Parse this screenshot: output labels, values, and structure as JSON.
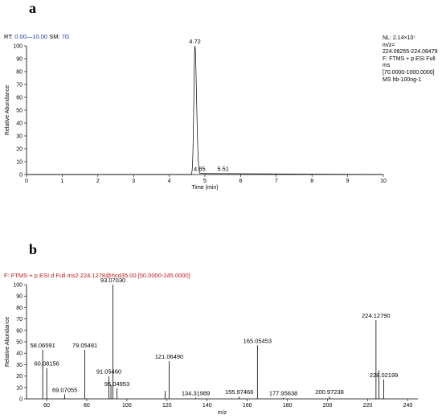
{
  "charts": [
    {
      "type": "line",
      "panel_label": "a",
      "header": {
        "rt_label": "RT:",
        "rt_value": "0.00—10.00",
        "sm_label": "SM:",
        "sm_value": "7G"
      },
      "info_lines": [
        "NL: 2.14×10⁷",
        "m/z=",
        "224.08255-224.08479",
        "F: FTMS + p ESI Full",
        "ms",
        "[70.0000-1000.0000]",
        "MS hb-100ng-1"
      ],
      "xlabel": "Time (min)",
      "ylabel": "Relative Abundance",
      "xlim": [
        0,
        10
      ],
      "ylim": [
        0,
        100
      ],
      "x_ticks": [
        0,
        1,
        2,
        3,
        4,
        5,
        6,
        7,
        8,
        9,
        10
      ],
      "y_ticks": [
        0,
        10,
        20,
        30,
        40,
        50,
        60,
        70,
        80,
        90,
        100
      ],
      "peak": {
        "apex": 4.72,
        "start": 4.62,
        "end": 4.86,
        "height": 100
      },
      "annotations": [
        {
          "text": "4.72",
          "x": 4.72,
          "y": 100
        },
        {
          "text": "4.85",
          "x": 4.85,
          "y": 1
        },
        {
          "text": "5.51",
          "x": 5.51,
          "y": 1
        }
      ]
    },
    {
      "type": "bar",
      "panel_label": "b",
      "header": {
        "text": "F: FTMS + p ESI d Full ms2 224.1278@hcd35.00 [50.0000-245.0000]"
      },
      "xlabel": "m/z",
      "ylabel": "Relative Abundance",
      "xlim": [
        50,
        245
      ],
      "ylim": [
        0,
        100
      ],
      "x_ticks": [
        60,
        80,
        100,
        120,
        140,
        160,
        180,
        200,
        220,
        240
      ],
      "y_ticks": [
        0,
        10,
        20,
        30,
        40,
        50,
        60,
        70,
        80,
        90,
        100
      ],
      "peaks": [
        {
          "mz": 58.06591,
          "value": 43,
          "label": "58.06591"
        },
        {
          "mz": 60.08156,
          "value": 27,
          "label": "60.08156"
        },
        {
          "mz": 69.07055,
          "value": 4,
          "label": "69.07055"
        },
        {
          "mz": 79.05481,
          "value": 43,
          "label": "79.05481"
        },
        {
          "mz": 91.0546,
          "value": 20,
          "label": "91.05460"
        },
        {
          "mz": 92.06,
          "value": 12,
          "label": ""
        },
        {
          "mz": 93.0703,
          "value": 100,
          "label": "93.07030"
        },
        {
          "mz": 95.04953,
          "value": 9,
          "label": "95.04953"
        },
        {
          "mz": 119.05,
          "value": 7,
          "label": ""
        },
        {
          "mz": 121.0649,
          "value": 33,
          "label": "121.06490"
        },
        {
          "mz": 134.31989,
          "value": 1,
          "label": "134.31989"
        },
        {
          "mz": 155.97466,
          "value": 2,
          "label": "155.97466"
        },
        {
          "mz": 165.05453,
          "value": 47,
          "label": "165.05453"
        },
        {
          "mz": 177.95638,
          "value": 1,
          "label": "177.95638"
        },
        {
          "mz": 200.97238,
          "value": 2,
          "label": "200.97238"
        },
        {
          "mz": 224.1279,
          "value": 69,
          "label": "224.12790"
        },
        {
          "mz": 225.6,
          "value": 25,
          "label": ""
        },
        {
          "mz": 228.02199,
          "value": 17,
          "label": "228.02199"
        }
      ]
    }
  ]
}
